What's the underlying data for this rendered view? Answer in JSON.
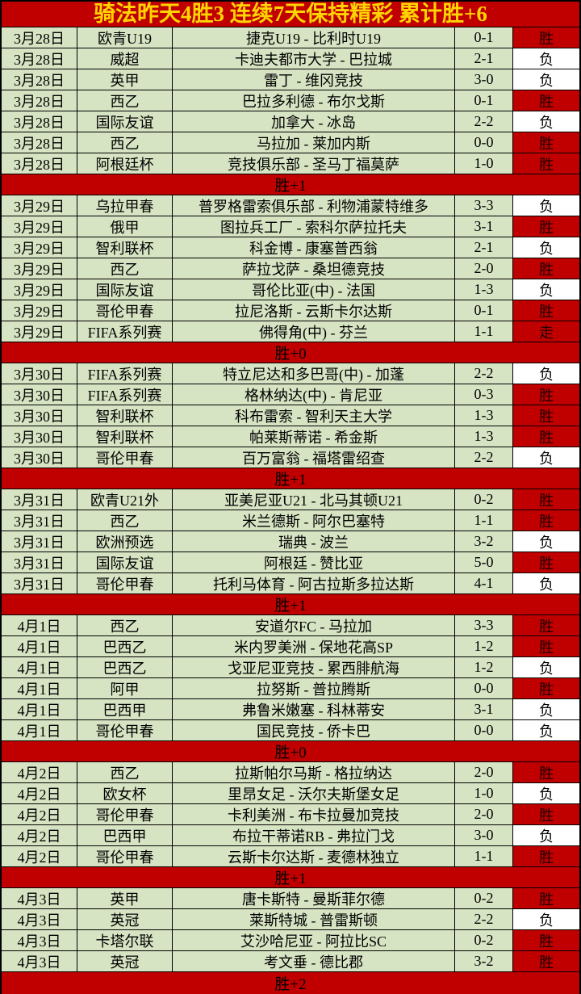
{
  "title": "骑法昨天4胜3 连续7天保持精彩 累计胜+6",
  "colors": {
    "header_bg": "#c00000",
    "header_text": "#ffd400",
    "row_bg": "#d7e4c3",
    "win_bg": "#c00000",
    "loss_bg": "#ffffff",
    "separator_bg": "#c00000",
    "border": "#000000"
  },
  "result_labels": {
    "win": "胜",
    "loss": "负",
    "push": "走"
  },
  "groups": [
    {
      "summary": "胜+1",
      "rows": [
        {
          "date": "3月28日",
          "league": "欧青U19",
          "match": "捷克U19 - 比利时U19",
          "score": "0-1",
          "result": "胜",
          "result_type": "win"
        },
        {
          "date": "3月28日",
          "league": "威超",
          "match": "卡迪夫都市大学 - 巴拉城",
          "score": "2-1",
          "result": "负",
          "result_type": "loss"
        },
        {
          "date": "3月28日",
          "league": "英甲",
          "match": "雷丁 - 维冈竞技",
          "score": "3-0",
          "result": "负",
          "result_type": "loss"
        },
        {
          "date": "3月28日",
          "league": "西乙",
          "match": "巴拉多利德 - 布尔戈斯",
          "score": "0-1",
          "result": "胜",
          "result_type": "win"
        },
        {
          "date": "3月28日",
          "league": "国际友谊",
          "match": "加拿大 - 冰岛",
          "score": "2-2",
          "result": "负",
          "result_type": "loss"
        },
        {
          "date": "3月28日",
          "league": "西乙",
          "match": "马拉加 - 莱加内斯",
          "score": "0-0",
          "result": "胜",
          "result_type": "win"
        },
        {
          "date": "3月28日",
          "league": "阿根廷杯",
          "match": "竞技俱乐部 - 圣马丁福莫萨",
          "score": "1-0",
          "result": "胜",
          "result_type": "win"
        }
      ]
    },
    {
      "summary": "胜+0",
      "rows": [
        {
          "date": "3月29日",
          "league": "乌拉甲春",
          "match": "普罗格雷索俱乐部 - 利物浦蒙特维多",
          "score": "3-3",
          "result": "负",
          "result_type": "loss"
        },
        {
          "date": "3月29日",
          "league": "俄甲",
          "match": "图拉兵工厂 - 索科尔萨拉托夫",
          "score": "3-1",
          "result": "胜",
          "result_type": "win"
        },
        {
          "date": "3月29日",
          "league": "智利联杯",
          "match": "科金博 - 康塞普西翁",
          "score": "2-1",
          "result": "负",
          "result_type": "loss"
        },
        {
          "date": "3月29日",
          "league": "西乙",
          "match": "萨拉戈萨 - 桑坦德竞技",
          "score": "2-0",
          "result": "胜",
          "result_type": "win"
        },
        {
          "date": "3月29日",
          "league": "国际友谊",
          "match": "哥伦比亚(中) - 法国",
          "score": "1-3",
          "result": "负",
          "result_type": "loss"
        },
        {
          "date": "3月29日",
          "league": "哥伦甲春",
          "match": "拉尼洛斯 - 云斯卡尔达斯",
          "score": "0-1",
          "result": "胜",
          "result_type": "win"
        },
        {
          "date": "3月29日",
          "league": "FIFA系列赛",
          "match": "佛得角(中) - 芬兰",
          "score": "1-1",
          "result": "走",
          "result_type": "push"
        }
      ]
    },
    {
      "summary": "胜+1",
      "rows": [
        {
          "date": "3月30日",
          "league": "FIFA系列赛",
          "match": "特立尼达和多巴哥(中) - 加蓬",
          "score": "2-2",
          "result": "负",
          "result_type": "loss"
        },
        {
          "date": "3月30日",
          "league": "FIFA系列赛",
          "match": "格林纳达(中) - 肯尼亚",
          "score": "0-3",
          "result": "胜",
          "result_type": "win"
        },
        {
          "date": "3月30日",
          "league": "智利联杯",
          "match": "科布雷索 - 智利天主大学",
          "score": "1-3",
          "result": "胜",
          "result_type": "win"
        },
        {
          "date": "3月30日",
          "league": "智利联杯",
          "match": "帕莱斯蒂诺 - 希金斯",
          "score": "1-3",
          "result": "胜",
          "result_type": "win"
        },
        {
          "date": "3月30日",
          "league": "哥伦甲春",
          "match": "百万富翁 - 福塔雷绍查",
          "score": "2-2",
          "result": "负",
          "result_type": "loss"
        }
      ]
    },
    {
      "summary": "胜+1",
      "rows": [
        {
          "date": "3月31日",
          "league": "欧青U21外",
          "match": "亚美尼亚U21 - 北马其顿U21",
          "score": "0-2",
          "result": "胜",
          "result_type": "win"
        },
        {
          "date": "3月31日",
          "league": "西乙",
          "match": "米兰德斯 - 阿尔巴塞特",
          "score": "1-1",
          "result": "胜",
          "result_type": "win"
        },
        {
          "date": "3月31日",
          "league": "欧洲预选",
          "match": "瑞典 - 波兰",
          "score": "3-2",
          "result": "负",
          "result_type": "loss"
        },
        {
          "date": "3月31日",
          "league": "国际友谊",
          "match": "阿根廷 - 赞比亚",
          "score": "5-0",
          "result": "胜",
          "result_type": "win"
        },
        {
          "date": "3月31日",
          "league": "哥伦甲春",
          "match": "托利马体育 - 阿古拉斯多拉达斯",
          "score": "4-1",
          "result": "负",
          "result_type": "loss"
        }
      ]
    },
    {
      "summary": "胜+0",
      "rows": [
        {
          "date": "4月1日",
          "league": "西乙",
          "match": "安道尔FC - 马拉加",
          "score": "3-3",
          "result": "胜",
          "result_type": "win"
        },
        {
          "date": "4月1日",
          "league": "巴西乙",
          "match": "米内罗美洲 - 保地花高SP",
          "score": "1-2",
          "result": "胜",
          "result_type": "win"
        },
        {
          "date": "4月1日",
          "league": "巴西乙",
          "match": "戈亚尼亚竞技 - 累西腓航海",
          "score": "1-2",
          "result": "负",
          "result_type": "loss"
        },
        {
          "date": "4月1日",
          "league": "阿甲",
          "match": "拉努斯 - 普拉腾斯",
          "score": "0-0",
          "result": "胜",
          "result_type": "win"
        },
        {
          "date": "4月1日",
          "league": "巴西甲",
          "match": "弗鲁米嫩塞 - 科林蒂安",
          "score": "3-1",
          "result": "负",
          "result_type": "loss"
        },
        {
          "date": "4月1日",
          "league": "哥伦甲春",
          "match": "国民竞技 - 侨卡巴",
          "score": "0-0",
          "result": "负",
          "result_type": "loss"
        }
      ]
    },
    {
      "summary": "胜+1",
      "rows": [
        {
          "date": "4月2日",
          "league": "西乙",
          "match": "拉斯帕尔马斯 - 格拉纳达",
          "score": "2-0",
          "result": "胜",
          "result_type": "win"
        },
        {
          "date": "4月2日",
          "league": "欧女杯",
          "match": "里昂女足 - 沃尔夫斯堡女足",
          "score": "1-0",
          "result": "负",
          "result_type": "loss"
        },
        {
          "date": "4月2日",
          "league": "哥伦甲春",
          "match": "卡利美洲 - 布卡拉曼加竞技",
          "score": "2-0",
          "result": "胜",
          "result_type": "win"
        },
        {
          "date": "4月2日",
          "league": "巴西甲",
          "match": "布拉干蒂诺RB - 弗拉门戈",
          "score": "3-0",
          "result": "负",
          "result_type": "loss"
        },
        {
          "date": "4月2日",
          "league": "哥伦甲春",
          "match": "云斯卡尔达斯 - 麦德林独立",
          "score": "1-1",
          "result": "胜",
          "result_type": "win"
        }
      ]
    },
    {
      "summary": "胜+2",
      "rows": [
        {
          "date": "4月3日",
          "league": "英甲",
          "match": "唐卡斯特 - 曼斯菲尔德",
          "score": "0-2",
          "result": "胜",
          "result_type": "win"
        },
        {
          "date": "4月3日",
          "league": "英冠",
          "match": "莱斯特城 - 普雷斯顿",
          "score": "2-2",
          "result": "负",
          "result_type": "loss"
        },
        {
          "date": "4月3日",
          "league": "卡塔尔联",
          "match": "艾沙哈尼亚 - 阿拉比SC",
          "score": "0-2",
          "result": "胜",
          "result_type": "win"
        },
        {
          "date": "4月3日",
          "league": "英冠",
          "match": "考文垂 - 德比郡",
          "score": "3-2",
          "result": "胜",
          "result_type": "win"
        }
      ]
    }
  ]
}
